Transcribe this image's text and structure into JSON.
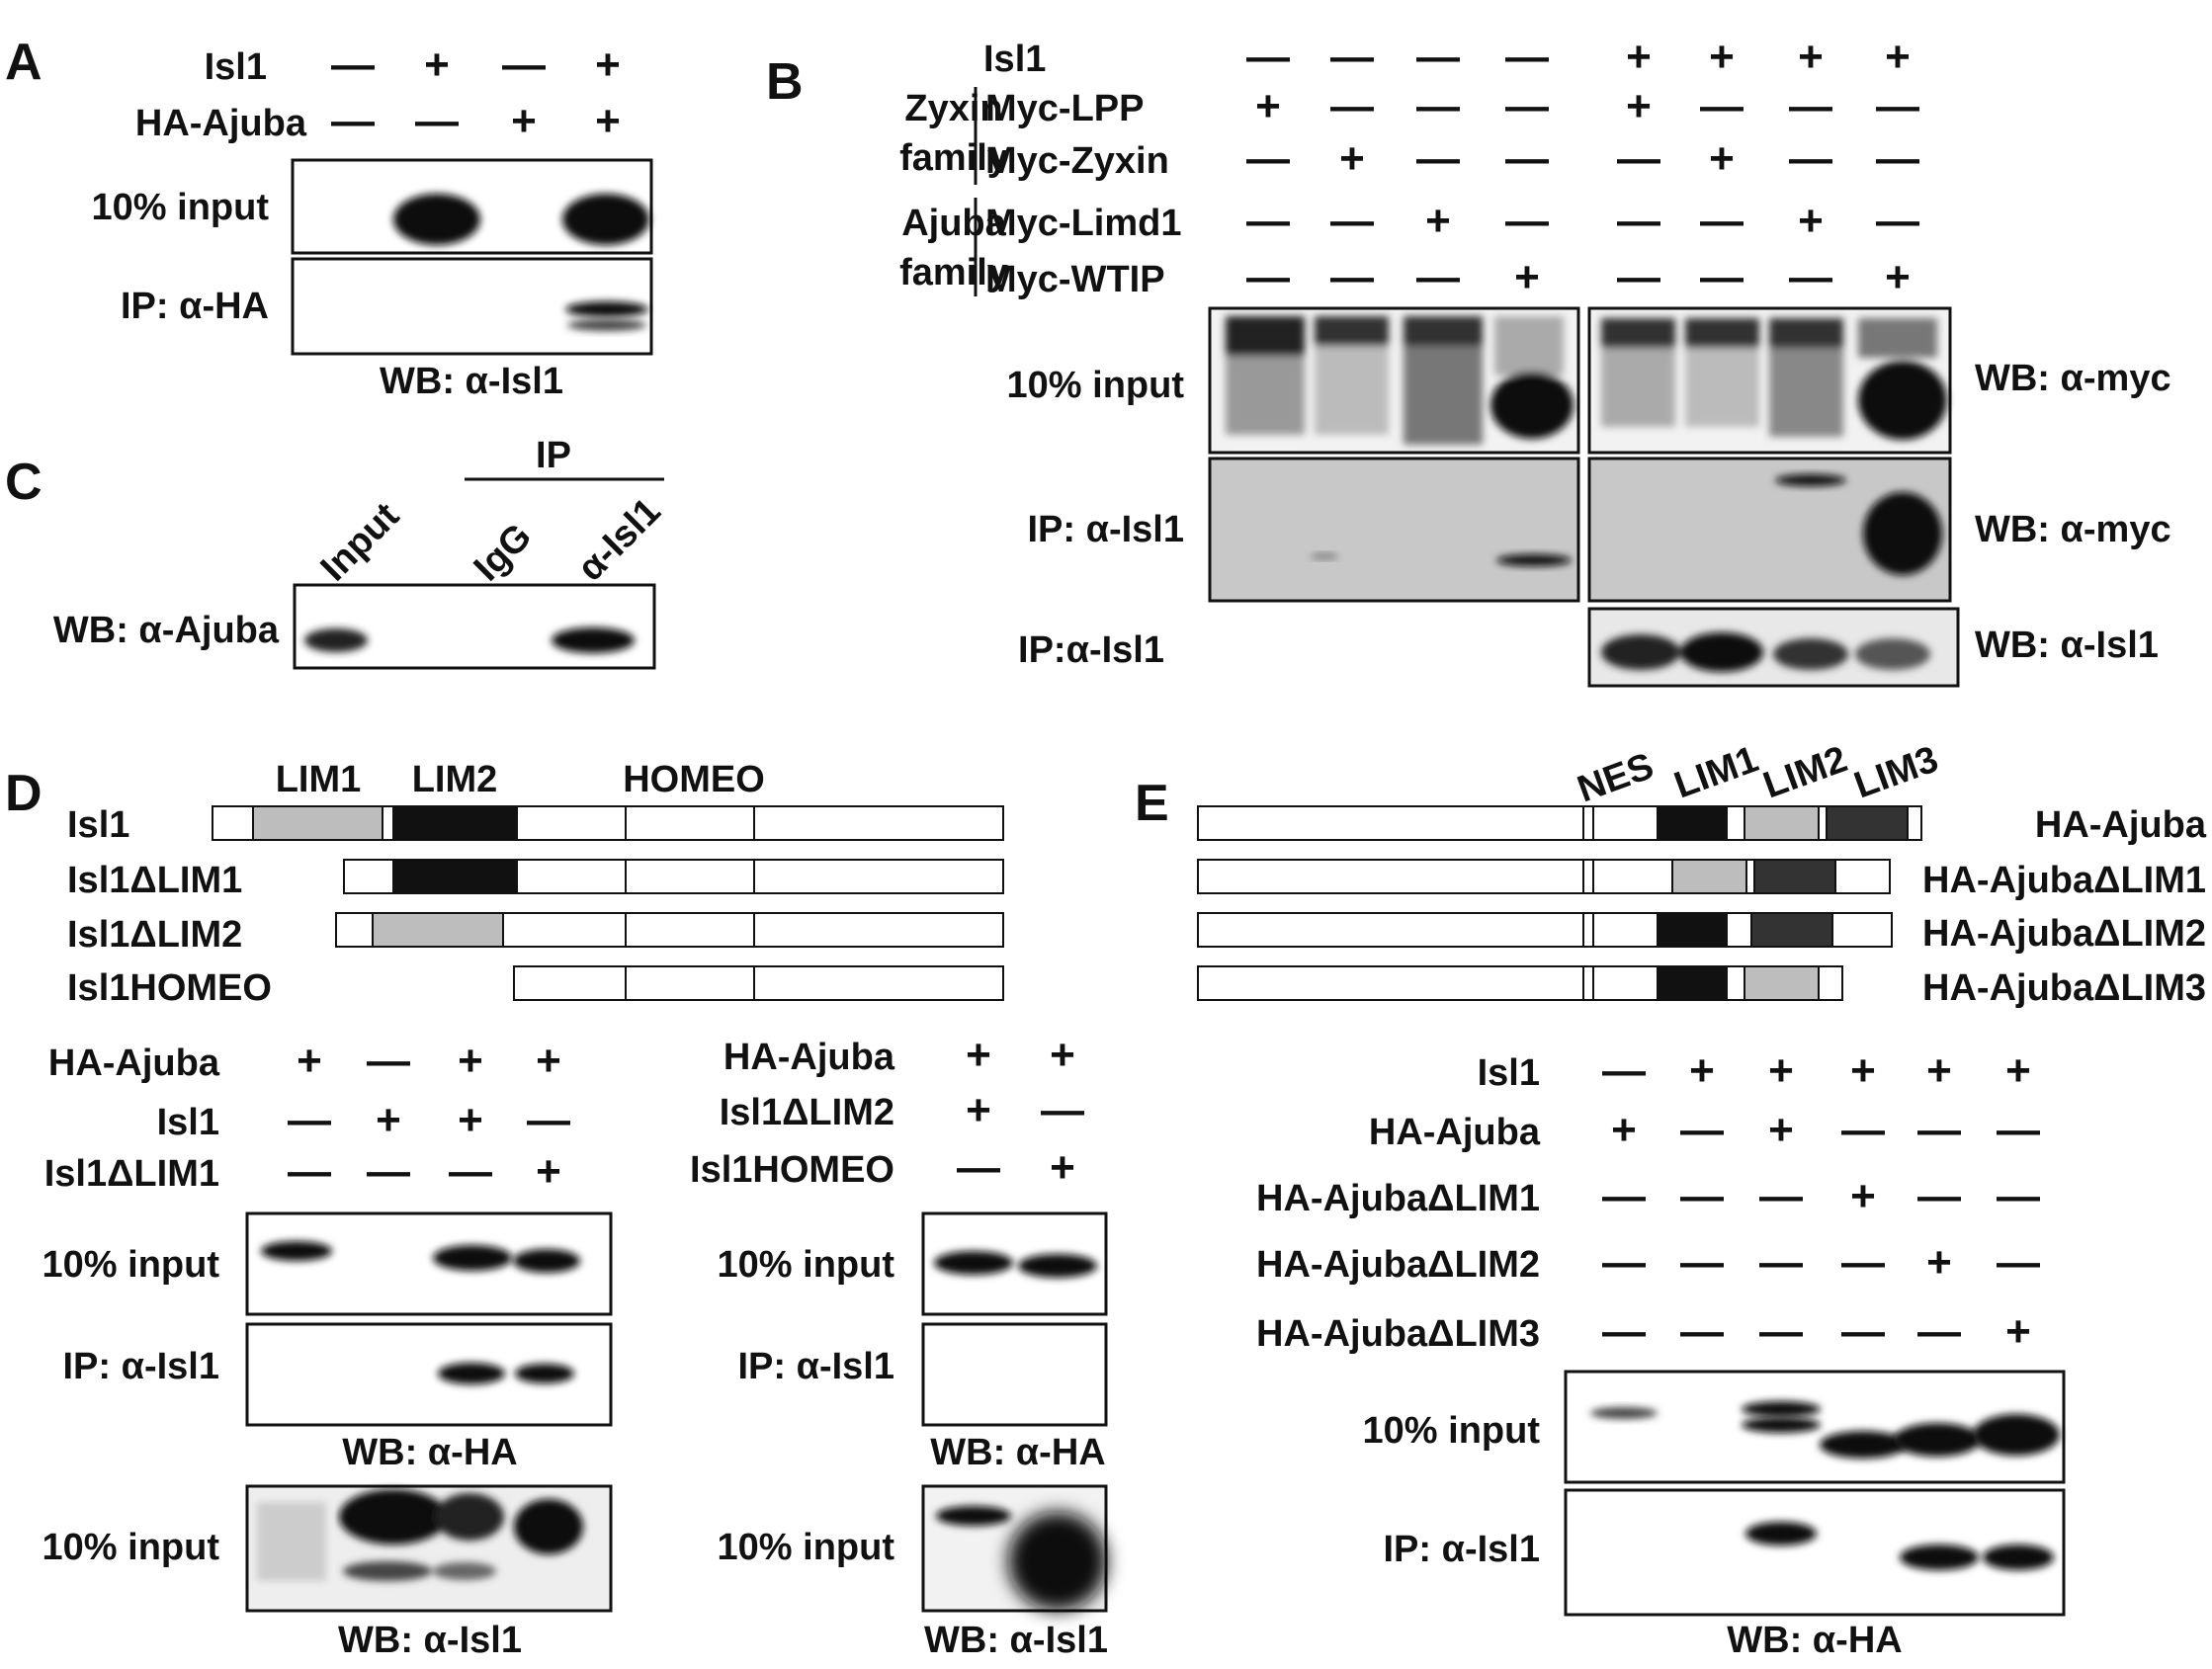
{
  "panel_letters": [
    "A",
    "B",
    "C",
    "D",
    "E"
  ],
  "panel_a": {
    "row_labels": [
      "Isl1",
      "HA-Ajuba"
    ],
    "signs": [
      [
        "—",
        "+",
        "—",
        "+"
      ],
      [
        "—",
        "—",
        "+",
        "+"
      ]
    ],
    "blot_labels": [
      "10% input",
      "IP: α-HA"
    ],
    "wb_label": "WB: α-Isl1"
  },
  "panel_b": {
    "isl1_label": "Isl1",
    "families": [
      "Zyxin family",
      "Ajuba family"
    ],
    "family_lines": [
      [
        "Zyxin",
        "family"
      ],
      [
        "Ajuba",
        "family"
      ]
    ],
    "constructs": [
      "Myc-LPP",
      "Myc-Zyxin",
      "Myc-Limd1",
      "Myc-WTIP"
    ],
    "signs": [
      [
        "—",
        "—",
        "—",
        "—",
        "+",
        "+",
        "+",
        "+"
      ],
      [
        "+",
        "—",
        "—",
        "—",
        "+",
        "—",
        "—",
        "—"
      ],
      [
        "—",
        "+",
        "—",
        "—",
        "—",
        "+",
        "—",
        "—"
      ],
      [
        "—",
        "—",
        "+",
        "—",
        "—",
        "—",
        "+",
        "—"
      ],
      [
        "—",
        "—",
        "—",
        "+",
        "—",
        "—",
        "—",
        "+"
      ]
    ],
    "left_labels": [
      "10% input",
      "IP: α-Isl1",
      "IP:α-Isl1"
    ],
    "right_labels": [
      "WB: α-myc",
      "WB: α-myc",
      "WB: α-Isl1"
    ]
  },
  "panel_c": {
    "ip_label": "IP",
    "lanes": [
      "Input",
      "IgG",
      "α-Isl1"
    ],
    "wb_label": "WB: α-Ajuba"
  },
  "panel_d": {
    "domain_labels": [
      "LIM1",
      "LIM2",
      "HOMEO"
    ],
    "constructs": [
      "Isl1",
      "Isl1ΔLIM1",
      "Isl1ΔLIM2",
      "Isl1HOMEO"
    ],
    "left": {
      "row_labels": [
        "HA-Ajuba",
        "Isl1",
        "Isl1ΔLIM1"
      ],
      "signs": [
        [
          "+",
          "—",
          "+",
          "+"
        ],
        [
          "—",
          "+",
          "+",
          "—"
        ],
        [
          "—",
          "—",
          "—",
          "+"
        ]
      ],
      "blot_labels": [
        "10% input",
        "IP: α-Isl1",
        "10% input"
      ],
      "wb_labels": [
        "WB: α-HA",
        "WB: α-Isl1"
      ]
    },
    "right": {
      "row_labels": [
        "HA-Ajuba",
        "Isl1ΔLIM2",
        "Isl1HOMEO"
      ],
      "signs": [
        [
          "+",
          "+"
        ],
        [
          "+",
          "—"
        ],
        [
          "—",
          "+"
        ]
      ],
      "blot_labels": [
        "10% input",
        "IP: α-Isl1",
        "10% input"
      ],
      "wb_labels": [
        "WB: α-HA",
        "WB: α-Isl1"
      ]
    }
  },
  "panel_e": {
    "domain_labels": [
      "NES",
      "LIM1",
      "LIM2",
      "LIM3"
    ],
    "constructs": [
      "HA-Ajuba",
      "HA-AjubaΔLIM1",
      "HA-AjubaΔLIM2",
      "HA-AjubaΔLIM3"
    ],
    "row_labels": [
      "Isl1",
      "HA-Ajuba",
      "HA-AjubaΔLIM1",
      "HA-AjubaΔLIM2",
      "HA-AjubaΔLIM3"
    ],
    "signs": [
      [
        "—",
        "+",
        "+",
        "+",
        "+",
        "+"
      ],
      [
        "+",
        "—",
        "+",
        "—",
        "—",
        "—"
      ],
      [
        "—",
        "—",
        "—",
        "+",
        "—",
        "—"
      ],
      [
        "—",
        "—",
        "—",
        "—",
        "+",
        "—"
      ],
      [
        "—",
        "—",
        "—",
        "—",
        "—",
        "+"
      ]
    ],
    "blot_labels": [
      "10% input",
      "IP: α-Isl1"
    ],
    "wb_label": "WB: α-HA"
  },
  "colors": {
    "lim1_gray": "#bdbdbd",
    "lim2_black": "#111111",
    "lim3_dark": "#333333",
    "band": "#111111"
  }
}
